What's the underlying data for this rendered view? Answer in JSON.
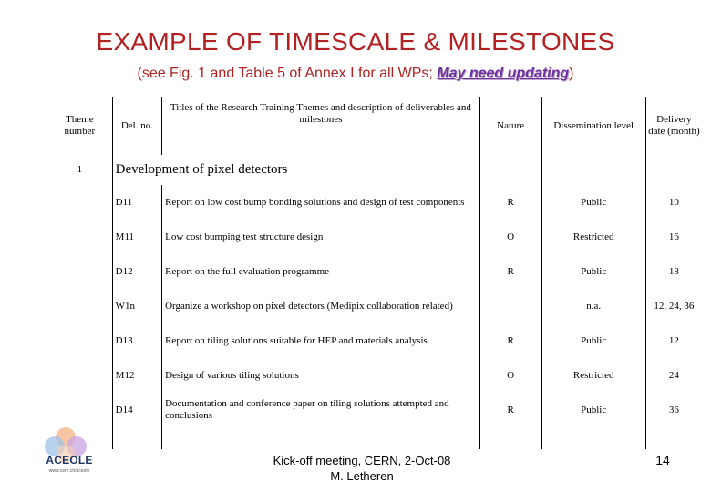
{
  "slide": {
    "title": "EXAMPLE OF TIMESCALE & MILESTONES",
    "subtitle_prefix": "(see Fig. 1 and Table 5 of Annex I for all WPs;",
    "subtitle_note": "May need updating",
    "subtitle_suffix": ")",
    "colors": {
      "title": "#b22222",
      "note": "#7030a0"
    }
  },
  "table": {
    "headers": {
      "theme_number": "Theme number",
      "del_no": "Del. no.",
      "titles": "Titles of the Research Training Themes and description of deliverables and milestones",
      "nature": "Nature",
      "dissemination": "Dissemination level",
      "delivery": "Delivery date (month)"
    },
    "section": {
      "number": "1",
      "title": "Development of pixel detectors"
    },
    "rows": [
      {
        "id": "D11",
        "desc": "Report on low cost bump bonding solutions and design of test components",
        "nature": "R",
        "level": "Public",
        "month": "10"
      },
      {
        "id": "M11",
        "desc": "Low cost bumping test structure design",
        "nature": "O",
        "level": "Restricted",
        "month": "16"
      },
      {
        "id": "D12",
        "desc": "Report on the full evaluation programme",
        "nature": "R",
        "level": "Public",
        "month": "18"
      },
      {
        "id": "W1n",
        "desc": "Organize a workshop on pixel detectors (Medipix collaboration related)",
        "nature": "",
        "level": "n.a.",
        "month": "12, 24, 36"
      },
      {
        "id": "D13",
        "desc": "Report on tiling solutions suitable for HEP and materials analysis",
        "nature": "R",
        "level": "Public",
        "month": "12"
      },
      {
        "id": "M12",
        "desc": "Design of various tiling solutions",
        "nature": "O",
        "level": "Restricted",
        "month": "24"
      },
      {
        "id": "D14",
        "desc": "Documentation and conference paper on tiling solutions attempted and conclusions",
        "nature": "R",
        "level": "Public",
        "month": "36"
      }
    ]
  },
  "footer": {
    "line1": "Kick-off meeting, CERN, 2-Oct-08",
    "line2": "M. Letheren",
    "page": "14"
  },
  "logo": {
    "text": "ACEOLE",
    "sub": "www.cern.ch/aceole"
  }
}
